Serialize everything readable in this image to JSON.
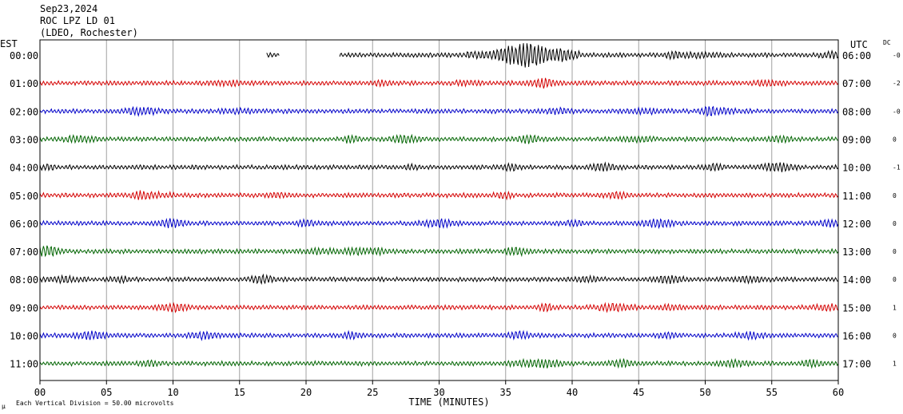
{
  "header": {
    "date": "Sep23,2024",
    "station": "ROC LPZ LD 01",
    "network": "(LDEO, Rochester)"
  },
  "chart_data": {
    "type": "line",
    "title": "ROC LPZ LD 01",
    "xlabel": "TIME (MINUTES)",
    "x_ticks": [
      "00",
      "05",
      "10",
      "15",
      "20",
      "25",
      "30",
      "35",
      "40",
      "45",
      "50",
      "55",
      "60"
    ],
    "xlim": [
      0,
      60
    ],
    "left_axis_label": "EST",
    "right_axis_label": "UTC",
    "dc_label": "DC",
    "grid": "vertical",
    "scale_note": "Each Vertical Division =   50.00 microvolts",
    "corner_mark": "μ",
    "trace_colors": [
      "#000000",
      "#d40000",
      "#0000c8",
      "#006400"
    ],
    "rows": [
      {
        "est": "00:00",
        "utc": "06:00",
        "dc": "-0",
        "color": "#000000",
        "event": true
      },
      {
        "est": "01:00",
        "utc": "07:00",
        "dc": "-2",
        "color": "#d40000"
      },
      {
        "est": "02:00",
        "utc": "08:00",
        "dc": "-0",
        "color": "#0000c8"
      },
      {
        "est": "03:00",
        "utc": "09:00",
        "dc": "0",
        "color": "#006400"
      },
      {
        "est": "04:00",
        "utc": "10:00",
        "dc": "-1",
        "color": "#000000"
      },
      {
        "est": "05:00",
        "utc": "11:00",
        "dc": "0",
        "color": "#d40000"
      },
      {
        "est": "06:00",
        "utc": "12:00",
        "dc": "0",
        "color": "#0000c8"
      },
      {
        "est": "07:00",
        "utc": "13:00",
        "dc": "0",
        "color": "#006400"
      },
      {
        "est": "08:00",
        "utc": "14:00",
        "dc": "0",
        "color": "#000000"
      },
      {
        "est": "09:00",
        "utc": "15:00",
        "dc": "1",
        "color": "#d40000"
      },
      {
        "est": "10:00",
        "utc": "16:00",
        "dc": "0",
        "color": "#0000c8"
      },
      {
        "est": "11:00",
        "utc": "17:00",
        "dc": "1",
        "color": "#006400"
      }
    ],
    "event": {
      "row": 0,
      "data_start_min": 22.5,
      "small_segment_min": [
        17.0,
        18.0
      ],
      "peak_window_min": [
        32.0,
        40.5
      ],
      "peak_min": 36.5
    }
  }
}
